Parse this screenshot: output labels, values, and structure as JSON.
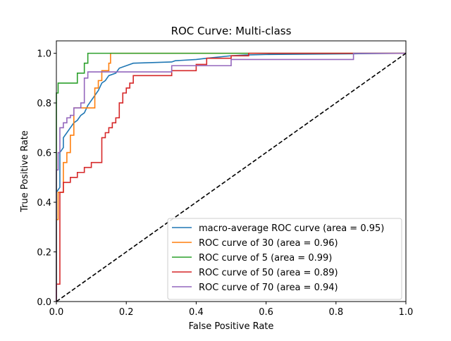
{
  "chart_data": {
    "type": "line",
    "title": "ROC Curve: Multi-class",
    "xlabel": "False Positive Rate",
    "ylabel": "True Positive Rate",
    "xlim": [
      0.0,
      1.0
    ],
    "ylim": [
      0.0,
      1.05
    ],
    "xticks": [
      "0.0",
      "0.2",
      "0.4",
      "0.6",
      "0.8",
      "1.0"
    ],
    "yticks": [
      "0.0",
      "0.2",
      "0.4",
      "0.6",
      "0.8",
      "1.0"
    ],
    "grid": false,
    "legend_position": "lower-right",
    "series": [
      {
        "name": "macro-average ROC curve (area = 0.95)",
        "color": "#1f77b4",
        "style": "solid",
        "points": [
          [
            0,
            0.44
          ],
          [
            0.01,
            0.46
          ],
          [
            0.01,
            0.6
          ],
          [
            0.02,
            0.62
          ],
          [
            0.02,
            0.66
          ],
          [
            0.03,
            0.68
          ],
          [
            0.04,
            0.7
          ],
          [
            0.05,
            0.72
          ],
          [
            0.06,
            0.73
          ],
          [
            0.07,
            0.75
          ],
          [
            0.08,
            0.76
          ],
          [
            0.09,
            0.79
          ],
          [
            0.1,
            0.81
          ],
          [
            0.11,
            0.83
          ],
          [
            0.12,
            0.85
          ],
          [
            0.13,
            0.88
          ],
          [
            0.14,
            0.89
          ],
          [
            0.15,
            0.91
          ],
          [
            0.17,
            0.92
          ],
          [
            0.18,
            0.94
          ],
          [
            0.2,
            0.95
          ],
          [
            0.22,
            0.96
          ],
          [
            0.33,
            0.965
          ],
          [
            0.34,
            0.97
          ],
          [
            0.4,
            0.975
          ],
          [
            0.43,
            0.98
          ],
          [
            0.5,
            0.99
          ],
          [
            0.54,
            0.993
          ],
          [
            0.6,
            0.995
          ],
          [
            0.85,
            0.998
          ],
          [
            1.0,
            1.0
          ]
        ]
      },
      {
        "name": "ROC curve of 30 (area = 0.96)",
        "color": "#ff7f0e",
        "style": "step",
        "points": [
          [
            0,
            0
          ],
          [
            0,
            0.33
          ],
          [
            0.005,
            0.33
          ],
          [
            0.005,
            0.44
          ],
          [
            0.02,
            0.44
          ],
          [
            0.02,
            0.56
          ],
          [
            0.03,
            0.56
          ],
          [
            0.03,
            0.6
          ],
          [
            0.04,
            0.6
          ],
          [
            0.04,
            0.67
          ],
          [
            0.05,
            0.67
          ],
          [
            0.05,
            0.78
          ],
          [
            0.11,
            0.78
          ],
          [
            0.11,
            0.86
          ],
          [
            0.12,
            0.86
          ],
          [
            0.12,
            0.89
          ],
          [
            0.13,
            0.89
          ],
          [
            0.13,
            0.93
          ],
          [
            0.15,
            0.93
          ],
          [
            0.15,
            0.96
          ],
          [
            0.155,
            0.96
          ],
          [
            0.155,
            1.0
          ],
          [
            1.0,
            1.0
          ]
        ]
      },
      {
        "name": "ROC curve of 5 (area = 0.99)",
        "color": "#2ca02c",
        "style": "step",
        "points": [
          [
            0,
            0
          ],
          [
            0,
            0.84
          ],
          [
            0.005,
            0.84
          ],
          [
            0.005,
            0.88
          ],
          [
            0.06,
            0.88
          ],
          [
            0.06,
            0.92
          ],
          [
            0.08,
            0.92
          ],
          [
            0.08,
            0.96
          ],
          [
            0.09,
            0.96
          ],
          [
            0.09,
            1.0
          ],
          [
            1.0,
            1.0
          ]
        ]
      },
      {
        "name": "ROC curve of 50 (area = 0.89)",
        "color": "#d62728",
        "style": "step",
        "points": [
          [
            0,
            0
          ],
          [
            0,
            0.07
          ],
          [
            0.01,
            0.07
          ],
          [
            0.01,
            0.44
          ],
          [
            0.02,
            0.44
          ],
          [
            0.02,
            0.48
          ],
          [
            0.04,
            0.48
          ],
          [
            0.04,
            0.5
          ],
          [
            0.06,
            0.5
          ],
          [
            0.06,
            0.52
          ],
          [
            0.08,
            0.52
          ],
          [
            0.08,
            0.54
          ],
          [
            0.1,
            0.54
          ],
          [
            0.1,
            0.56
          ],
          [
            0.13,
            0.56
          ],
          [
            0.13,
            0.66
          ],
          [
            0.14,
            0.66
          ],
          [
            0.14,
            0.68
          ],
          [
            0.15,
            0.68
          ],
          [
            0.15,
            0.7
          ],
          [
            0.16,
            0.7
          ],
          [
            0.16,
            0.72
          ],
          [
            0.17,
            0.72
          ],
          [
            0.17,
            0.74
          ],
          [
            0.18,
            0.74
          ],
          [
            0.18,
            0.8
          ],
          [
            0.19,
            0.8
          ],
          [
            0.19,
            0.84
          ],
          [
            0.2,
            0.84
          ],
          [
            0.2,
            0.86
          ],
          [
            0.21,
            0.86
          ],
          [
            0.21,
            0.88
          ],
          [
            0.22,
            0.88
          ],
          [
            0.22,
            0.91
          ],
          [
            0.33,
            0.91
          ],
          [
            0.33,
            0.93
          ],
          [
            0.4,
            0.93
          ],
          [
            0.4,
            0.955
          ],
          [
            0.43,
            0.955
          ],
          [
            0.43,
            0.98
          ],
          [
            0.5,
            0.98
          ],
          [
            0.5,
            0.99
          ],
          [
            0.55,
            0.99
          ],
          [
            0.55,
            1.0
          ],
          [
            1.0,
            1.0
          ]
        ]
      },
      {
        "name": "ROC curve of 70 (area = 0.94)",
        "color": "#9467bd",
        "style": "step",
        "points": [
          [
            0,
            0
          ],
          [
            0,
            0.53
          ],
          [
            0.005,
            0.53
          ],
          [
            0.005,
            0.6
          ],
          [
            0.01,
            0.6
          ],
          [
            0.01,
            0.7
          ],
          [
            0.02,
            0.7
          ],
          [
            0.02,
            0.72
          ],
          [
            0.03,
            0.72
          ],
          [
            0.03,
            0.74
          ],
          [
            0.04,
            0.74
          ],
          [
            0.04,
            0.75
          ],
          [
            0.05,
            0.75
          ],
          [
            0.05,
            0.78
          ],
          [
            0.07,
            0.78
          ],
          [
            0.07,
            0.8
          ],
          [
            0.08,
            0.8
          ],
          [
            0.08,
            0.9
          ],
          [
            0.09,
            0.9
          ],
          [
            0.09,
            0.925
          ],
          [
            0.33,
            0.925
          ],
          [
            0.33,
            0.95
          ],
          [
            0.5,
            0.95
          ],
          [
            0.5,
            0.975
          ],
          [
            0.85,
            0.975
          ],
          [
            0.85,
            1.0
          ],
          [
            1.0,
            1.0
          ]
        ]
      },
      {
        "name": "",
        "color": "#000000",
        "style": "dashed",
        "points": [
          [
            0,
            0
          ],
          [
            1,
            1
          ]
        ]
      }
    ]
  }
}
